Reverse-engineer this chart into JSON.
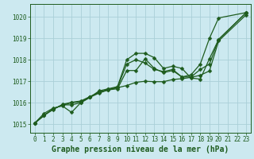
{
  "background_color": "#cce9f0",
  "plot_bg_color": "#cce9f0",
  "grid_color": "#aacfd8",
  "line_color": "#1e5c1e",
  "title": "Graphe pression niveau de la mer (hPa)",
  "xlim": [
    -0.5,
    23.5
  ],
  "ylim": [
    1014.6,
    1020.6
  ],
  "yticks": [
    1015,
    1016,
    1017,
    1018,
    1019,
    1020
  ],
  "xticks": [
    0,
    1,
    2,
    3,
    4,
    5,
    6,
    7,
    8,
    9,
    10,
    11,
    12,
    13,
    14,
    15,
    16,
    17,
    18,
    19,
    20,
    21,
    22,
    23
  ],
  "series": [
    {
      "x": [
        0,
        1,
        2,
        3,
        4,
        5,
        6,
        7,
        8,
        9,
        10,
        11,
        12,
        13,
        14,
        15,
        16,
        17,
        18,
        19,
        20,
        23
      ],
      "y": [
        1015.05,
        1015.5,
        1015.75,
        1015.85,
        1015.55,
        1016.0,
        1016.25,
        1016.45,
        1016.6,
        1016.65,
        1017.5,
        1017.5,
        1018.05,
        1017.6,
        1017.4,
        1017.5,
        1017.2,
        1017.3,
        1017.8,
        1019.0,
        1019.95,
        1020.2
      ]
    },
    {
      "x": [
        0,
        1,
        2,
        3,
        4,
        5,
        6,
        7,
        8,
        9,
        10,
        11,
        12,
        13,
        14,
        15,
        16,
        17,
        18,
        19,
        20,
        23
      ],
      "y": [
        1015.05,
        1015.4,
        1015.7,
        1015.9,
        1015.9,
        1016.0,
        1016.25,
        1016.55,
        1016.65,
        1016.75,
        1018.0,
        1018.3,
        1018.3,
        1018.1,
        1017.6,
        1017.7,
        1017.6,
        1017.15,
        1017.1,
        1018.05,
        1018.95,
        1020.2
      ]
    },
    {
      "x": [
        0,
        1,
        2,
        3,
        4,
        5,
        6,
        7,
        8,
        9,
        10,
        11,
        12,
        13,
        14,
        15,
        16,
        17,
        18,
        19,
        20,
        23
      ],
      "y": [
        1015.05,
        1015.4,
        1015.72,
        1015.88,
        1016.0,
        1016.05,
        1016.28,
        1016.5,
        1016.62,
        1016.72,
        1017.8,
        1018.0,
        1017.85,
        1017.55,
        1017.45,
        1017.55,
        1017.2,
        1017.2,
        1017.55,
        1017.8,
        1018.95,
        1020.2
      ]
    },
    {
      "x": [
        0,
        1,
        2,
        3,
        4,
        5,
        6,
        7,
        8,
        9,
        10,
        11,
        12,
        13,
        14,
        15,
        16,
        17,
        18,
        19,
        20,
        23
      ],
      "y": [
        1015.05,
        1015.42,
        1015.68,
        1015.92,
        1016.02,
        1016.08,
        1016.28,
        1016.48,
        1016.6,
        1016.7,
        1016.8,
        1016.95,
        1017.0,
        1016.98,
        1016.98,
        1017.08,
        1017.12,
        1017.18,
        1017.28,
        1017.48,
        1018.88,
        1020.1
      ]
    }
  ],
  "markersize": 2.5,
  "linewidth": 0.9,
  "title_fontsize": 7,
  "tick_fontsize": 5.5
}
